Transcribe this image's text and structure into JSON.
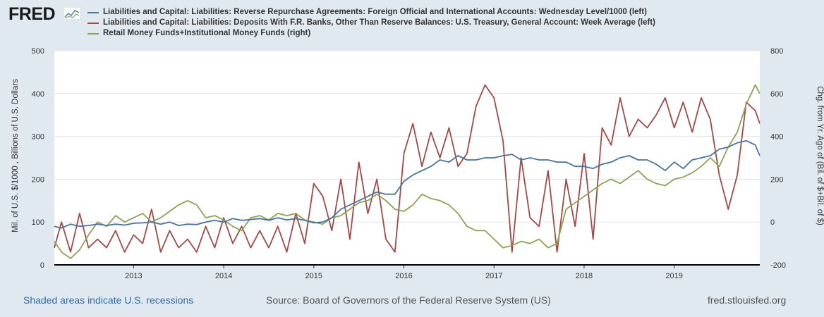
{
  "logo": {
    "text": "FRED"
  },
  "footer": {
    "recession_note": "Shaded areas indicate U.S. recessions",
    "source": "Source: Board of Governors of the Federal Reserve System (US)",
    "site": "fred.stlouisfed.org"
  },
  "chart_data": {
    "type": "line",
    "title": "",
    "ylabel_left": "Mil. of U.S. $/1000 , Billions of U.S. Dollars",
    "ylabel_right": "Chg. from Yr. Ago of (Bil. of $+Bil. of $)",
    "ylim_left": [
      0,
      500
    ],
    "ylim_right": [
      -200,
      800
    ],
    "yticks_left": [
      0,
      100,
      200,
      300,
      400,
      500
    ],
    "yticks_right": [
      -200,
      0,
      200,
      400,
      600,
      800
    ],
    "x_range": [
      2012.12,
      2019.95
    ],
    "xticks": [
      2013,
      2014,
      2015,
      2016,
      2017,
      2018,
      2019
    ],
    "grid": true,
    "series": [
      {
        "name": "Liabilities and Capital: Liabilities: Reverse Repurchase Agreements: Foreign Official and International Accounts: Wednesday Level/1000 (left)",
        "color": "#4572a7",
        "axis": "left",
        "x": [
          2012.12,
          2012.2,
          2012.3,
          2012.4,
          2012.5,
          2012.6,
          2012.7,
          2012.8,
          2012.9,
          2013.0,
          2013.1,
          2013.2,
          2013.3,
          2013.4,
          2013.5,
          2013.6,
          2013.7,
          2013.8,
          2013.9,
          2014.0,
          2014.1,
          2014.2,
          2014.3,
          2014.4,
          2014.5,
          2014.6,
          2014.7,
          2014.8,
          2014.9,
          2015.0,
          2015.1,
          2015.2,
          2015.3,
          2015.4,
          2015.5,
          2015.6,
          2015.7,
          2015.8,
          2015.9,
          2016.0,
          2016.1,
          2016.2,
          2016.3,
          2016.4,
          2016.5,
          2016.6,
          2016.7,
          2016.8,
          2016.9,
          2017.0,
          2017.1,
          2017.2,
          2017.3,
          2017.4,
          2017.5,
          2017.6,
          2017.7,
          2017.8,
          2017.9,
          2018.0,
          2018.1,
          2018.2,
          2018.3,
          2018.4,
          2018.5,
          2018.6,
          2018.7,
          2018.8,
          2018.9,
          2019.0,
          2019.1,
          2019.2,
          2019.3,
          2019.4,
          2019.5,
          2019.6,
          2019.7,
          2019.8,
          2019.9,
          2019.95
        ],
        "values": [
          90,
          86,
          95,
          90,
          92,
          95,
          92,
          95,
          93,
          97,
          98,
          100,
          95,
          100,
          92,
          95,
          94,
          100,
          104,
          100,
          108,
          104,
          106,
          108,
          104,
          110,
          105,
          108,
          104,
          98,
          100,
          110,
          130,
          140,
          150,
          160,
          170,
          165,
          165,
          195,
          210,
          220,
          230,
          245,
          240,
          255,
          245,
          245,
          250,
          250,
          255,
          258,
          245,
          250,
          245,
          245,
          240,
          240,
          230,
          230,
          225,
          235,
          240,
          250,
          255,
          245,
          245,
          235,
          220,
          240,
          225,
          245,
          250,
          255,
          270,
          275,
          285,
          290,
          280,
          255
        ]
      },
      {
        "name": "Liabilities and Capital: Liabilities: Deposits With F.R. Banks, Other Than Reserve Balances: U.S. Treasury, General Account: Week Average (left)",
        "color": "#aa4643",
        "axis": "left",
        "x": [
          2012.12,
          2012.2,
          2012.3,
          2012.4,
          2012.5,
          2012.6,
          2012.7,
          2012.8,
          2012.9,
          2013.0,
          2013.1,
          2013.2,
          2013.3,
          2013.4,
          2013.5,
          2013.6,
          2013.7,
          2013.8,
          2013.9,
          2014.0,
          2014.1,
          2014.2,
          2014.3,
          2014.4,
          2014.5,
          2014.6,
          2014.7,
          2014.8,
          2014.9,
          2015.0,
          2015.1,
          2015.2,
          2015.3,
          2015.4,
          2015.5,
          2015.6,
          2015.7,
          2015.8,
          2015.9,
          2016.0,
          2016.1,
          2016.2,
          2016.3,
          2016.4,
          2016.5,
          2016.6,
          2016.7,
          2016.8,
          2016.9,
          2017.0,
          2017.1,
          2017.2,
          2017.3,
          2017.4,
          2017.5,
          2017.6,
          2017.7,
          2017.8,
          2017.9,
          2018.0,
          2018.1,
          2018.2,
          2018.3,
          2018.4,
          2018.5,
          2018.6,
          2018.7,
          2018.8,
          2018.9,
          2019.0,
          2019.1,
          2019.2,
          2019.3,
          2019.4,
          2019.5,
          2019.6,
          2019.7,
          2019.8,
          2019.9,
          2019.95
        ],
        "values": [
          40,
          100,
          30,
          120,
          40,
          60,
          40,
          80,
          30,
          70,
          50,
          130,
          30,
          80,
          40,
          60,
          30,
          90,
          40,
          110,
          50,
          90,
          40,
          80,
          40,
          90,
          30,
          120,
          50,
          190,
          160,
          80,
          200,
          60,
          240,
          120,
          200,
          60,
          30,
          260,
          330,
          230,
          310,
          250,
          320,
          230,
          260,
          370,
          420,
          390,
          290,
          30,
          250,
          110,
          90,
          220,
          30,
          200,
          90,
          260,
          60,
          320,
          280,
          390,
          300,
          340,
          320,
          350,
          390,
          320,
          380,
          310,
          390,
          340,
          210,
          130,
          210,
          380,
          360,
          330
        ]
      },
      {
        "name": "Retail Money Funds+Institutional Money Funds (right)",
        "color": "#89a54e",
        "axis": "right",
        "x": [
          2012.12,
          2012.2,
          2012.3,
          2012.4,
          2012.5,
          2012.6,
          2012.7,
          2012.8,
          2012.9,
          2013.0,
          2013.1,
          2013.2,
          2013.3,
          2013.4,
          2013.5,
          2013.6,
          2013.7,
          2013.8,
          2013.9,
          2014.0,
          2014.1,
          2014.2,
          2014.3,
          2014.4,
          2014.5,
          2014.6,
          2014.7,
          2014.8,
          2014.9,
          2015.0,
          2015.1,
          2015.2,
          2015.3,
          2015.4,
          2015.5,
          2015.6,
          2015.7,
          2015.8,
          2015.9,
          2016.0,
          2016.1,
          2016.2,
          2016.3,
          2016.4,
          2016.5,
          2016.6,
          2016.7,
          2016.8,
          2016.9,
          2017.0,
          2017.1,
          2017.2,
          2017.3,
          2017.4,
          2017.5,
          2017.6,
          2017.7,
          2017.8,
          2017.9,
          2018.0,
          2018.1,
          2018.2,
          2018.3,
          2018.4,
          2018.5,
          2018.6,
          2018.7,
          2018.8,
          2018.9,
          2019.0,
          2019.1,
          2019.2,
          2019.3,
          2019.4,
          2019.5,
          2019.6,
          2019.7,
          2019.8,
          2019.9,
          2019.95
        ],
        "values": [
          -90,
          -140,
          -170,
          -130,
          -60,
          0,
          -20,
          30,
          0,
          20,
          40,
          0,
          20,
          50,
          80,
          100,
          80,
          20,
          30,
          10,
          -20,
          -40,
          20,
          30,
          10,
          40,
          30,
          40,
          10,
          0,
          -10,
          20,
          30,
          60,
          90,
          100,
          130,
          100,
          60,
          50,
          80,
          130,
          110,
          100,
          80,
          40,
          -20,
          -40,
          -40,
          -80,
          -120,
          -110,
          -90,
          -100,
          -80,
          -120,
          -100,
          60,
          90,
          120,
          150,
          180,
          200,
          180,
          210,
          240,
          200,
          180,
          170,
          200,
          210,
          230,
          260,
          300,
          260,
          350,
          420,
          550,
          640,
          600
        ]
      }
    ]
  }
}
